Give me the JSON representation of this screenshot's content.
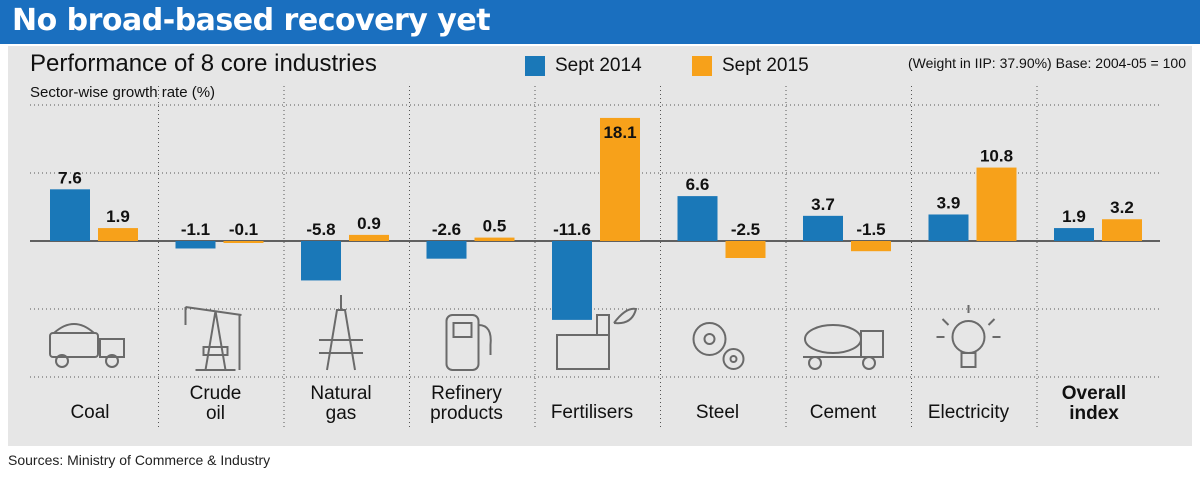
{
  "header": {
    "title": "No broad-based recovery yet"
  },
  "subtitle": "Performance of 8 core industries",
  "legend": [
    {
      "label": "Sept 2014",
      "color": "#1a78b8"
    },
    {
      "label": "Sept 2015",
      "color": "#f7a11a"
    }
  ],
  "base_note": "(Weight in IIP: 37.90%) Base: 2004-05 = 100",
  "source": "Sources: Ministry of Commerce & Industry",
  "category_labels": [
    {
      "l1": "Coal",
      "l2": "",
      "bold": false,
      "icon": "truck-icon"
    },
    {
      "l1": "Crude",
      "l2": "oil",
      "bold": false,
      "icon": "oil-pump-icon"
    },
    {
      "l1": "Natural",
      "l2": "gas",
      "bold": false,
      "icon": "gas-rig-icon"
    },
    {
      "l1": "Refinery",
      "l2": "products",
      "bold": false,
      "icon": "fuel-pump-icon"
    },
    {
      "l1": "Fertilisers",
      "l2": "",
      "bold": false,
      "icon": "factory-leaf-icon"
    },
    {
      "l1": "Steel",
      "l2": "",
      "bold": false,
      "icon": "gears-icon"
    },
    {
      "l1": "Cement",
      "l2": "",
      "bold": false,
      "icon": "cement-mixer-icon"
    },
    {
      "l1": "Electricity",
      "l2": "",
      "bold": false,
      "icon": "light-bulb-icon"
    },
    {
      "l1": "Overall",
      "l2": "index",
      "bold": true,
      "icon": ""
    }
  ],
  "chart_data": {
    "type": "bar",
    "ylabel": "Sector-wise growth rate (%)",
    "categories": [
      "Coal",
      "Crude oil",
      "Natural gas",
      "Refinery products",
      "Fertilisers",
      "Steel",
      "Cement",
      "Electricity",
      "Overall index"
    ],
    "series": [
      {
        "name": "Sept 2014",
        "color": "#1a78b8",
        "values": [
          7.6,
          -1.1,
          -5.8,
          -2.6,
          -11.6,
          6.6,
          3.7,
          3.9,
          1.9
        ],
        "labels": [
          "7.6",
          "-1.1",
          "-5.8",
          "-2.6",
          "-11.6",
          "6.6",
          "3.7",
          "3.9",
          "1.9"
        ]
      },
      {
        "name": "Sept 2015",
        "color": "#f7a11a",
        "values": [
          1.9,
          -0.1,
          0.9,
          0.5,
          18.1,
          -2.5,
          -1.5,
          10.8,
          3.2
        ],
        "labels": [
          "1.9",
          "-0.1",
          "0.9",
          "0.5",
          "18.1",
          "-2.5",
          "-1.5",
          "10.8",
          "3.2"
        ]
      }
    ],
    "ylim": [
      -14,
      20
    ],
    "grid": true,
    "legend": "top"
  }
}
